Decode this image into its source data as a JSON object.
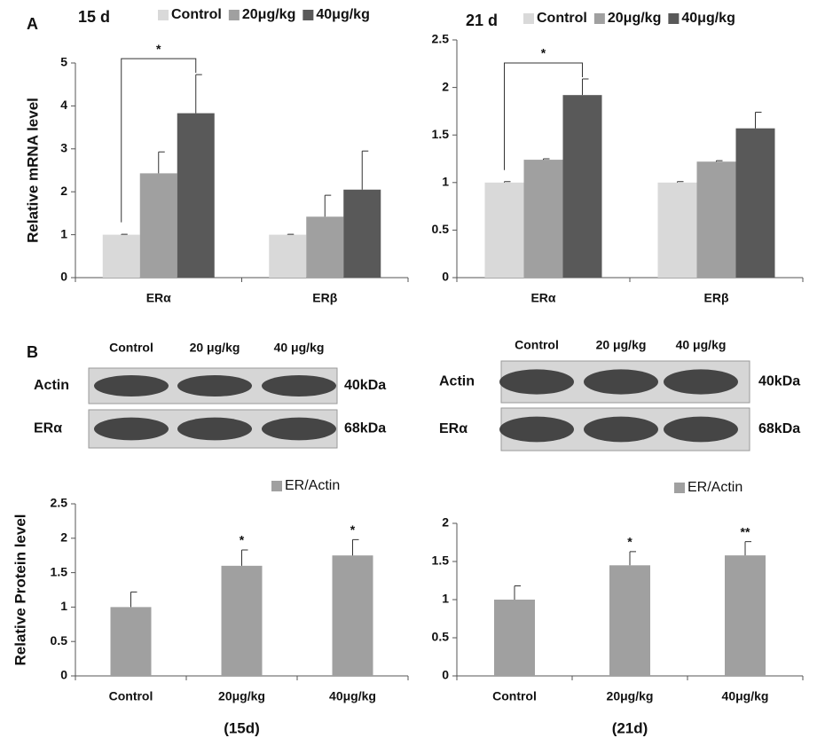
{
  "panel_labels": [
    "A",
    "B"
  ],
  "chart_data": [
    {
      "type": "bar",
      "title": "15 d",
      "y_label": "Relative mRNA level",
      "categories": [
        "ERα",
        "ERβ"
      ],
      "series": [
        {
          "name": "Control",
          "color": "#d9d9d9",
          "values": [
            1,
            1
          ],
          "errors": [
            0.01,
            0.01
          ]
        },
        {
          "name": "20μg/kg",
          "color": "#a0a0a0",
          "values": [
            2.43,
            1.42
          ],
          "errors": [
            0.5,
            0.5
          ]
        },
        {
          "name": "40μg/kg",
          "color": "#595959",
          "values": [
            3.83,
            2.05
          ],
          "errors": [
            0.9,
            0.9
          ]
        }
      ],
      "bracket": {
        "label": "*"
      },
      "ylim": [
        0,
        5
      ],
      "yticks": [
        0,
        1,
        2,
        3,
        4,
        5
      ],
      "grid": false
    },
    {
      "type": "bar",
      "title": "21 d",
      "categories": [
        "ERα",
        "ERβ"
      ],
      "series": [
        {
          "name": "Control",
          "color": "#d9d9d9",
          "values": [
            1,
            1
          ],
          "errors": [
            0.01,
            0.01
          ]
        },
        {
          "name": "20μg/kg",
          "color": "#a0a0a0",
          "values": [
            1.24,
            1.22
          ],
          "errors": [
            0.01,
            0.01
          ]
        },
        {
          "name": "40μg/kg",
          "color": "#595959",
          "values": [
            1.92,
            1.57
          ],
          "errors": [
            0.17,
            0.17
          ]
        }
      ],
      "bracket": {
        "label": "*"
      },
      "ylim": [
        0,
        2.5
      ],
      "yticks": [
        0,
        0.5,
        1,
        1.5,
        2,
        2.5
      ],
      "grid": false
    },
    {
      "type": "bar",
      "y_label": "Relative Protein level",
      "x_label": "(15d)",
      "categories": [
        "Control",
        "20μg/kg",
        "40μg/kg"
      ],
      "series": [
        {
          "name": "ER/Actin",
          "color": "#a0a0a0",
          "values": [
            1,
            1.6,
            1.75
          ],
          "errors": [
            0.22,
            0.23,
            0.23
          ]
        }
      ],
      "significance": [
        null,
        "*",
        "*"
      ],
      "ylim": [
        0,
        2.5
      ],
      "yticks": [
        0,
        0.5,
        1,
        1.5,
        2,
        2.5
      ],
      "grid": false
    },
    {
      "type": "bar",
      "x_label": "(21d)",
      "categories": [
        "Control",
        "20μg/kg",
        "40μg/kg"
      ],
      "series": [
        {
          "name": "ER/Actin",
          "color": "#a0a0a0",
          "values": [
            1,
            1.45,
            1.58
          ],
          "errors": [
            0.18,
            0.18,
            0.18
          ]
        }
      ],
      "significance": [
        null,
        "*",
        "**"
      ],
      "ylim": [
        0,
        2
      ],
      "yticks": [
        0,
        0.5,
        1,
        1.5,
        2
      ],
      "grid": false
    }
  ],
  "blots": [
    {
      "lanes": [
        "Control",
        "20 μg/kg",
        "40 μg/kg"
      ],
      "rows": [
        {
          "name": "Actin",
          "size": "40kDa"
        },
        {
          "name": "ERα",
          "size": "68kDa"
        }
      ]
    },
    {
      "lanes": [
        "Control",
        "20 μg/kg",
        "40 μg/kg"
      ],
      "rows": [
        {
          "name": "Actin",
          "size": "40kDa"
        },
        {
          "name": "ERα",
          "size": "68kDa"
        }
      ]
    }
  ]
}
